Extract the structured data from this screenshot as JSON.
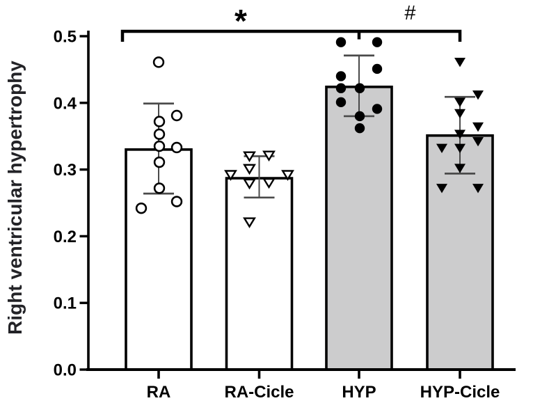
{
  "figure": {
    "kind": "bar chart with individual data points, SD error bars and significance brackets"
  },
  "chart_data": {
    "type": "bar",
    "title": "",
    "xlabel": "",
    "ylabel": "Right ventricular hypertrophy",
    "ylim": [
      0.0,
      0.5
    ],
    "yticks": [
      0.0,
      0.1,
      0.2,
      0.3,
      0.4,
      0.5
    ],
    "ytick_labels": [
      "0.0",
      "0.1",
      "0.2",
      "0.3",
      "0.4",
      "0.5"
    ],
    "grid": false,
    "legend": "none",
    "categories": [
      "RA",
      "RA-Cicle",
      "HYP",
      "HYP-Cicle"
    ],
    "colors": {
      "bar_control_fill": "#ffffff",
      "bar_hypoxia_fill": "#cccccd",
      "bar_border": "#000000",
      "error_bar": "#4a4a4a",
      "marker": "#000000",
      "bracket": "#000000"
    },
    "series": [
      {
        "name": "RA",
        "marker": "circle-open",
        "bar_fill": "#ffffff",
        "mean": 0.33,
        "error_low": 0.264,
        "error_high": 0.399,
        "points": [
          {
            "v": 0.461,
            "dx": 0
          },
          {
            "v": 0.381,
            "dx": 26
          },
          {
            "v": 0.372,
            "dx": 1
          },
          {
            "v": 0.353,
            "dx": 1
          },
          {
            "v": 0.335,
            "dx": 1
          },
          {
            "v": 0.333,
            "dx": 26
          },
          {
            "v": 0.311,
            "dx": 1
          },
          {
            "v": 0.272,
            "dx": 1
          },
          {
            "v": 0.252,
            "dx": 26
          },
          {
            "v": 0.242,
            "dx": -25
          }
        ]
      },
      {
        "name": "RA-Cicle",
        "marker": "triangle-open",
        "bar_fill": "#ffffff",
        "mean": 0.287,
        "error_low": 0.258,
        "error_high": 0.32,
        "points": [
          {
            "v": 0.322,
            "dx": 14
          },
          {
            "v": 0.321,
            "dx": -14
          },
          {
            "v": 0.302,
            "dx": -14
          },
          {
            "v": 0.293,
            "dx": -41
          },
          {
            "v": 0.293,
            "dx": 41
          },
          {
            "v": 0.281,
            "dx": 14
          },
          {
            "v": 0.28,
            "dx": -14
          },
          {
            "v": 0.222,
            "dx": -14
          }
        ]
      },
      {
        "name": "HYP",
        "marker": "circle-filled",
        "bar_fill": "#cccccd",
        "mean": 0.424,
        "error_low": 0.38,
        "error_high": 0.471,
        "points": [
          {
            "v": 0.491,
            "dx": -26
          },
          {
            "v": 0.491,
            "dx": 26
          },
          {
            "v": 0.451,
            "dx": 26
          },
          {
            "v": 0.44,
            "dx": -26
          },
          {
            "v": 0.422,
            "dx": -26
          },
          {
            "v": 0.422,
            "dx": 1
          },
          {
            "v": 0.401,
            "dx": -26
          },
          {
            "v": 0.391,
            "dx": 26
          },
          {
            "v": 0.38,
            "dx": 1
          },
          {
            "v": 0.362,
            "dx": 1
          }
        ]
      },
      {
        "name": "HYP-Cicle",
        "marker": "triangle-filled",
        "bar_fill": "#cccccd",
        "mean": 0.351,
        "error_low": 0.294,
        "error_high": 0.409,
        "points": [
          {
            "v": 0.462,
            "dx": 0
          },
          {
            "v": 0.413,
            "dx": 26
          },
          {
            "v": 0.402,
            "dx": 0
          },
          {
            "v": 0.385,
            "dx": 0
          },
          {
            "v": 0.365,
            "dx": 26
          },
          {
            "v": 0.354,
            "dx": 0
          },
          {
            "v": 0.343,
            "dx": 26
          },
          {
            "v": 0.333,
            "dx": -26
          },
          {
            "v": 0.333,
            "dx": 0
          },
          {
            "v": 0.303,
            "dx": 0
          },
          {
            "v": 0.273,
            "dx": -26
          },
          {
            "v": 0.273,
            "dx": 26
          }
        ]
      }
    ],
    "significance": [
      {
        "label": "*",
        "between": [
          "RA",
          "HYP"
        ]
      },
      {
        "label": "#",
        "between": [
          "HYP",
          "HYP-Cicle"
        ]
      }
    ]
  }
}
